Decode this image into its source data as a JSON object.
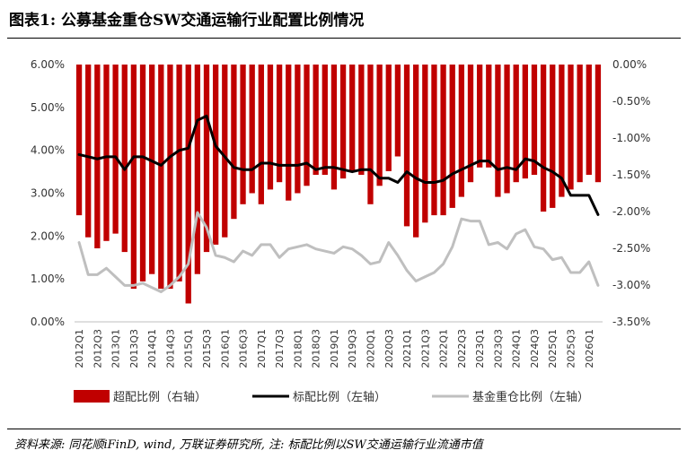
{
  "title": "图表1:  公募基金重仓SW交通运输行业配置比例情况",
  "source": "资料来源: 同花顺iFinD, wind, 万联证券研究所, 注: 标配比例以SW交通运输行业流通市值",
  "chart_data": {
    "type": "bar+line",
    "categories": [
      "2012Q1",
      "2012Q2",
      "2012Q3",
      "2012Q4",
      "2013Q1",
      "2013Q2",
      "2013Q3",
      "2013Q4",
      "2014Q1",
      "2014Q2",
      "2014Q3",
      "2014Q4",
      "2015Q1",
      "2015Q2",
      "2015Q3",
      "2015Q4",
      "2016Q1",
      "2016Q2",
      "2016Q3",
      "2016Q4",
      "2017Q1",
      "2017Q2",
      "2017Q3",
      "2017Q4",
      "2018Q1",
      "2018Q2",
      "2018Q3",
      "2018Q4",
      "2019Q1",
      "2019Q2",
      "2019Q3",
      "2019Q4",
      "2020Q1",
      "2020Q2",
      "2020Q3",
      "2020Q4",
      "2021Q1",
      "2021Q2",
      "2021Q3",
      "2021Q4",
      "2022Q1",
      "2022Q2",
      "2022Q3",
      "2022Q4",
      "2023Q1",
      "2023Q2",
      "2023Q3",
      "2023Q4",
      "2024Q1",
      "2024Q2",
      "2024Q3",
      "2024Q4",
      "2025Q1",
      "2025Q2",
      "2025Q3",
      "2025Q4",
      "2026Q1",
      "2026Q2"
    ],
    "tick_labels": [
      "2012Q1",
      "2012Q3",
      "2013Q1",
      "2013Q3",
      "2014Q1",
      "2014Q3",
      "2015Q1",
      "2015Q3",
      "2016Q1",
      "2016Q3",
      "2017Q1",
      "2017Q3",
      "2018Q1",
      "2018Q3",
      "2019Q1",
      "2019Q3",
      "2020Q1",
      "2020Q3",
      "2021Q1",
      "2021Q3",
      "2022Q1",
      "2022Q3",
      "2023Q1",
      "2023Q3",
      "2024Q1",
      "2024Q3",
      "2025Q1",
      "2025Q3",
      "2026Q1"
    ],
    "left_axis": {
      "min": 0,
      "max": 6,
      "step": 1,
      "tick_labels": [
        "0.00%",
        "1.00%",
        "2.00%",
        "3.00%",
        "4.00%",
        "5.00%",
        "6.00%"
      ]
    },
    "right_axis": {
      "min": -3.5,
      "max": 0,
      "step": 0.5,
      "tick_labels": [
        "-3.50%",
        "-3.00%",
        "-2.50%",
        "-2.00%",
        "-1.50%",
        "-1.00%",
        "-0.50%",
        "0.00%"
      ]
    },
    "series": [
      {
        "name": "超配比例（右轴）",
        "type": "bar",
        "axis": "right",
        "color": "#c00000",
        "values": [
          -2.05,
          -2.35,
          -2.5,
          -2.4,
          -2.3,
          -2.55,
          -3.05,
          -2.95,
          -2.85,
          -3.05,
          -3.05,
          -2.95,
          -3.25,
          -2.85,
          -2.55,
          -2.45,
          -2.35,
          -2.1,
          -1.9,
          -1.75,
          -1.9,
          -1.7,
          -1.6,
          -1.85,
          -1.75,
          -1.65,
          -1.5,
          -1.5,
          -1.7,
          -1.55,
          -1.45,
          -1.5,
          -1.9,
          -1.65,
          -1.45,
          -1.25,
          -2.2,
          -2.35,
          -2.15,
          -2.05,
          -2.05,
          -1.95,
          -1.8,
          -1.6,
          -1.4,
          -1.4,
          -1.8,
          -1.75,
          -1.6,
          -1.55,
          -1.5,
          -2.0,
          -1.95,
          -1.8,
          -1.7,
          -1.6,
          -1.5,
          -1.6
        ]
      },
      {
        "name": "标配比例（左轴）",
        "type": "line",
        "axis": "left",
        "color": "#000000",
        "values": [
          3.9,
          3.85,
          3.8,
          3.85,
          3.85,
          3.55,
          3.85,
          3.85,
          3.75,
          3.65,
          3.85,
          4.0,
          4.05,
          4.7,
          4.8,
          4.1,
          3.85,
          3.6,
          3.55,
          3.55,
          3.7,
          3.7,
          3.65,
          3.65,
          3.65,
          3.7,
          3.55,
          3.6,
          3.6,
          3.55,
          3.5,
          3.55,
          3.55,
          3.35,
          3.35,
          3.25,
          3.5,
          3.35,
          3.25,
          3.25,
          3.3,
          3.45,
          3.55,
          3.65,
          3.75,
          3.75,
          3.55,
          3.6,
          3.55,
          3.8,
          3.75,
          3.6,
          3.5,
          3.35,
          2.95,
          2.95,
          2.95,
          2.5
        ]
      },
      {
        "name": "基金重仓比例（左轴）",
        "type": "line",
        "axis": "left",
        "color": "#bfbfbf",
        "values": [
          1.85,
          1.1,
          1.1,
          1.25,
          1.05,
          0.85,
          0.85,
          0.9,
          0.8,
          0.7,
          0.85,
          1.05,
          1.35,
          2.55,
          2.2,
          1.55,
          1.5,
          1.4,
          1.65,
          1.55,
          1.8,
          1.8,
          1.5,
          1.7,
          1.75,
          1.8,
          1.7,
          1.65,
          1.6,
          1.75,
          1.7,
          1.55,
          1.35,
          1.4,
          1.85,
          1.55,
          1.2,
          0.95,
          1.05,
          1.15,
          1.35,
          1.75,
          2.4,
          2.35,
          2.35,
          1.8,
          1.85,
          1.7,
          2.05,
          2.15,
          1.75,
          1.7,
          1.45,
          1.5,
          1.15,
          1.15,
          1.4,
          0.85
        ]
      }
    ],
    "grid": false,
    "legend": "bottom"
  }
}
